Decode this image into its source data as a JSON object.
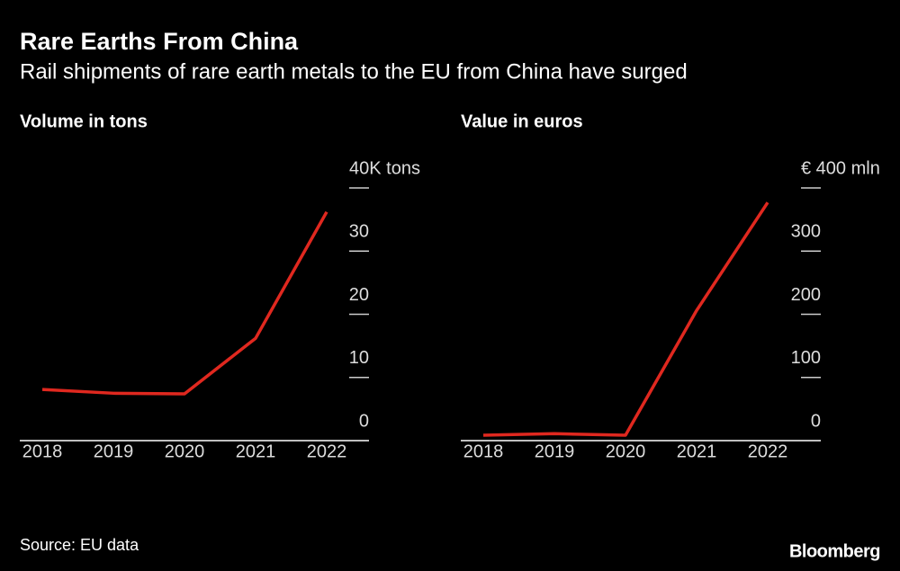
{
  "title": "Rare Earths From China",
  "subtitle": "Rail shipments of rare earth metals to the EU from China have surged",
  "source": "Source: EU data",
  "brand": "Bloomberg",
  "chart_data": [
    {
      "type": "line",
      "title": "Volume in tons",
      "categories": [
        "2018",
        "2019",
        "2020",
        "2021",
        "2022"
      ],
      "values": [
        8.1,
        7.5,
        7.4,
        16.2,
        36.2
      ],
      "color": "#e0281f",
      "ylim": [
        0,
        40
      ],
      "yticks": [
        0,
        10,
        20,
        30,
        {
          "value": 40,
          "label": "40K tons"
        }
      ]
    },
    {
      "type": "line",
      "title": "Value in euros",
      "categories": [
        "2018",
        "2019",
        "2020",
        "2021",
        "2022"
      ],
      "values": [
        8.5,
        11,
        8.5,
        206,
        377
      ],
      "color": "#e0281f",
      "ylim": [
        0,
        400
      ],
      "yticks": [
        0,
        100,
        200,
        300,
        {
          "value": 400,
          "label": "€ 400 mln"
        }
      ]
    }
  ]
}
